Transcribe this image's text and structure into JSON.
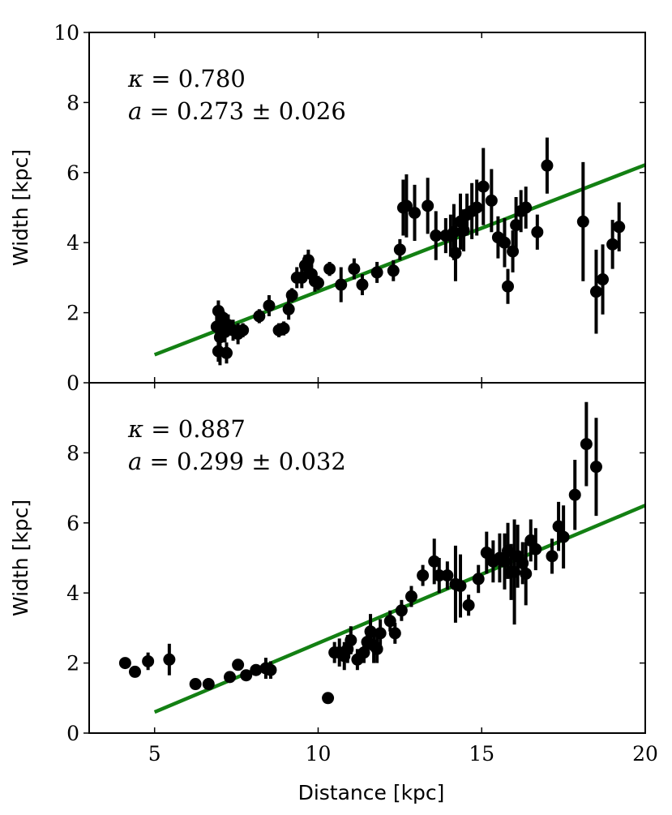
{
  "chart_data": [
    {
      "type": "scatter",
      "panel": "top",
      "xlabel": "",
      "ylabel": "Width [kpc]",
      "xlim": [
        3,
        20
      ],
      "ylim": [
        0,
        10
      ],
      "xticks": [
        5,
        10,
        15,
        20
      ],
      "yticks": [
        0,
        2,
        4,
        6,
        8,
        10
      ],
      "annotations": [
        {
          "symbol": "κ",
          "text": " = 0.780"
        },
        {
          "symbol": "a",
          "text": " = 0.273 ± 0.026"
        }
      ],
      "fit": {
        "color": "#138013",
        "x": [
          5,
          20
        ],
        "y": [
          0.8,
          6.22
        ]
      },
      "series": [
        {
          "name": "data",
          "color": "#000000",
          "points": [
            [
              6.9,
              1.6,
              0.3
            ],
            [
              6.95,
              2.05,
              0.3
            ],
            [
              7.0,
              1.3,
              0.8
            ],
            [
              6.95,
              0.9,
              0.3
            ],
            [
              7.1,
              1.85,
              0.2
            ],
            [
              7.15,
              1.45,
              0.3
            ],
            [
              7.2,
              0.85,
              0.3
            ],
            [
              7.25,
              1.65,
              0.3
            ],
            [
              7.4,
              1.5,
              0.3
            ],
            [
              7.55,
              1.4,
              0.3
            ],
            [
              7.7,
              1.5,
              0.2
            ],
            [
              8.2,
              1.9,
              0.2
            ],
            [
              8.5,
              2.2,
              0.3
            ],
            [
              8.8,
              1.5,
              0.2
            ],
            [
              8.95,
              1.55,
              0.2
            ],
            [
              9.1,
              2.1,
              0.3
            ],
            [
              9.2,
              2.5,
              0.2
            ],
            [
              9.35,
              3.0,
              0.3
            ],
            [
              9.5,
              3.0,
              0.3
            ],
            [
              9.6,
              3.35,
              0.3
            ],
            [
              9.7,
              3.5,
              0.3
            ],
            [
              9.8,
              3.1,
              0.3
            ],
            [
              9.9,
              2.9,
              0.3
            ],
            [
              10.0,
              2.85,
              0.2
            ],
            [
              10.35,
              3.25,
              0.2
            ],
            [
              10.7,
              2.8,
              0.5
            ],
            [
              11.1,
              3.25,
              0.3
            ],
            [
              11.35,
              2.8,
              0.3
            ],
            [
              11.8,
              3.15,
              0.3
            ],
            [
              12.3,
              3.2,
              0.3
            ],
            [
              12.5,
              3.8,
              0.3
            ],
            [
              12.6,
              5.0,
              0.8
            ],
            [
              12.7,
              5.05,
              0.9
            ],
            [
              12.95,
              4.85,
              0.8
            ],
            [
              13.35,
              5.05,
              0.8
            ],
            [
              13.6,
              4.2,
              0.7
            ],
            [
              13.9,
              4.2,
              0.5
            ],
            [
              14.05,
              4.2,
              0.6
            ],
            [
              14.15,
              4.3,
              0.8
            ],
            [
              14.2,
              3.7,
              0.8
            ],
            [
              14.35,
              4.6,
              0.8
            ],
            [
              14.45,
              4.35,
              0.6
            ],
            [
              14.55,
              4.8,
              0.6
            ],
            [
              14.7,
              4.9,
              0.8
            ],
            [
              14.85,
              5.0,
              0.8
            ],
            [
              15.05,
              5.6,
              1.1
            ],
            [
              15.3,
              5.2,
              0.9
            ],
            [
              15.5,
              4.15,
              0.6
            ],
            [
              15.7,
              4.0,
              0.7
            ],
            [
              15.8,
              2.75,
              0.5
            ],
            [
              15.95,
              3.75,
              0.6
            ],
            [
              16.05,
              4.5,
              0.8
            ],
            [
              16.2,
              4.9,
              0.6
            ],
            [
              16.35,
              5.0,
              0.6
            ],
            [
              16.7,
              4.3,
              0.5
            ],
            [
              17.0,
              6.2,
              0.8
            ],
            [
              18.1,
              4.6,
              1.7
            ],
            [
              18.5,
              2.6,
              1.2
            ],
            [
              18.7,
              2.95,
              1.0
            ],
            [
              19.0,
              3.95,
              0.7
            ],
            [
              19.2,
              4.45,
              0.7
            ]
          ]
        }
      ]
    },
    {
      "type": "scatter",
      "panel": "bottom",
      "xlabel": "Distance [kpc]",
      "ylabel": "Width [kpc]",
      "xlim": [
        3,
        20
      ],
      "ylim": [
        0,
        10
      ],
      "xticks": [
        5,
        10,
        15,
        20
      ],
      "yticks": [
        0,
        2,
        4,
        6,
        8
      ],
      "annotations": [
        {
          "symbol": "κ",
          "text": " = 0.887"
        },
        {
          "symbol": "a",
          "text": " = 0.299 ± 0.032"
        }
      ],
      "fit": {
        "color": "#138013",
        "x": [
          5,
          20
        ],
        "y": [
          0.6,
          6.5
        ]
      },
      "series": [
        {
          "name": "data",
          "color": "#000000",
          "points": [
            [
              4.1,
              2.0,
              0.15
            ],
            [
              4.4,
              1.75,
              0.15
            ],
            [
              4.8,
              2.05,
              0.25
            ],
            [
              5.45,
              2.1,
              0.45
            ],
            [
              6.25,
              1.4,
              0.1
            ],
            [
              6.65,
              1.4,
              0.15
            ],
            [
              7.3,
              1.6,
              0.15
            ],
            [
              7.55,
              1.95,
              0.15
            ],
            [
              7.8,
              1.65,
              0.15
            ],
            [
              8.1,
              1.8,
              0.15
            ],
            [
              8.4,
              1.85,
              0.3
            ],
            [
              8.55,
              1.8,
              0.25
            ],
            [
              10.3,
              1.0,
              0.1
            ],
            [
              10.5,
              2.3,
              0.3
            ],
            [
              10.65,
              2.3,
              0.4
            ],
            [
              10.8,
              2.2,
              0.4
            ],
            [
              10.9,
              2.4,
              0.4
            ],
            [
              11.0,
              2.65,
              0.4
            ],
            [
              11.2,
              2.1,
              0.3
            ],
            [
              11.4,
              2.3,
              0.3
            ],
            [
              11.5,
              2.6,
              0.4
            ],
            [
              11.6,
              2.9,
              0.5
            ],
            [
              11.7,
              2.5,
              0.5
            ],
            [
              11.8,
              2.4,
              0.4
            ],
            [
              11.9,
              2.85,
              0.4
            ],
            [
              12.2,
              3.2,
              0.3
            ],
            [
              12.35,
              2.85,
              0.3
            ],
            [
              12.55,
              3.5,
              0.3
            ],
            [
              12.85,
              3.9,
              0.3
            ],
            [
              13.2,
              4.5,
              0.3
            ],
            [
              13.55,
              4.9,
              0.65
            ],
            [
              13.7,
              4.5,
              0.5
            ],
            [
              13.95,
              4.5,
              0.4
            ],
            [
              14.2,
              4.25,
              1.1
            ],
            [
              14.35,
              4.2,
              0.9
            ],
            [
              14.6,
              3.65,
              0.3
            ],
            [
              14.9,
              4.4,
              0.4
            ],
            [
              15.15,
              5.15,
              0.6
            ],
            [
              15.35,
              4.9,
              0.6
            ],
            [
              15.55,
              5.0,
              0.7
            ],
            [
              15.7,
              4.9,
              0.8
            ],
            [
              15.8,
              5.2,
              0.8
            ],
            [
              15.9,
              4.6,
              0.8
            ],
            [
              16.0,
              4.6,
              1.5
            ],
            [
              16.1,
              5.05,
              0.9
            ],
            [
              16.25,
              4.85,
              0.6
            ],
            [
              16.35,
              4.55,
              0.9
            ],
            [
              16.5,
              5.5,
              0.6
            ],
            [
              16.65,
              5.25,
              0.6
            ],
            [
              17.15,
              5.05,
              0.5
            ],
            [
              17.35,
              5.9,
              0.7
            ],
            [
              17.5,
              5.6,
              0.9
            ],
            [
              17.85,
              6.8,
              1.0
            ],
            [
              18.2,
              8.25,
              1.2
            ],
            [
              18.5,
              7.6,
              1.4
            ]
          ]
        }
      ]
    }
  ]
}
